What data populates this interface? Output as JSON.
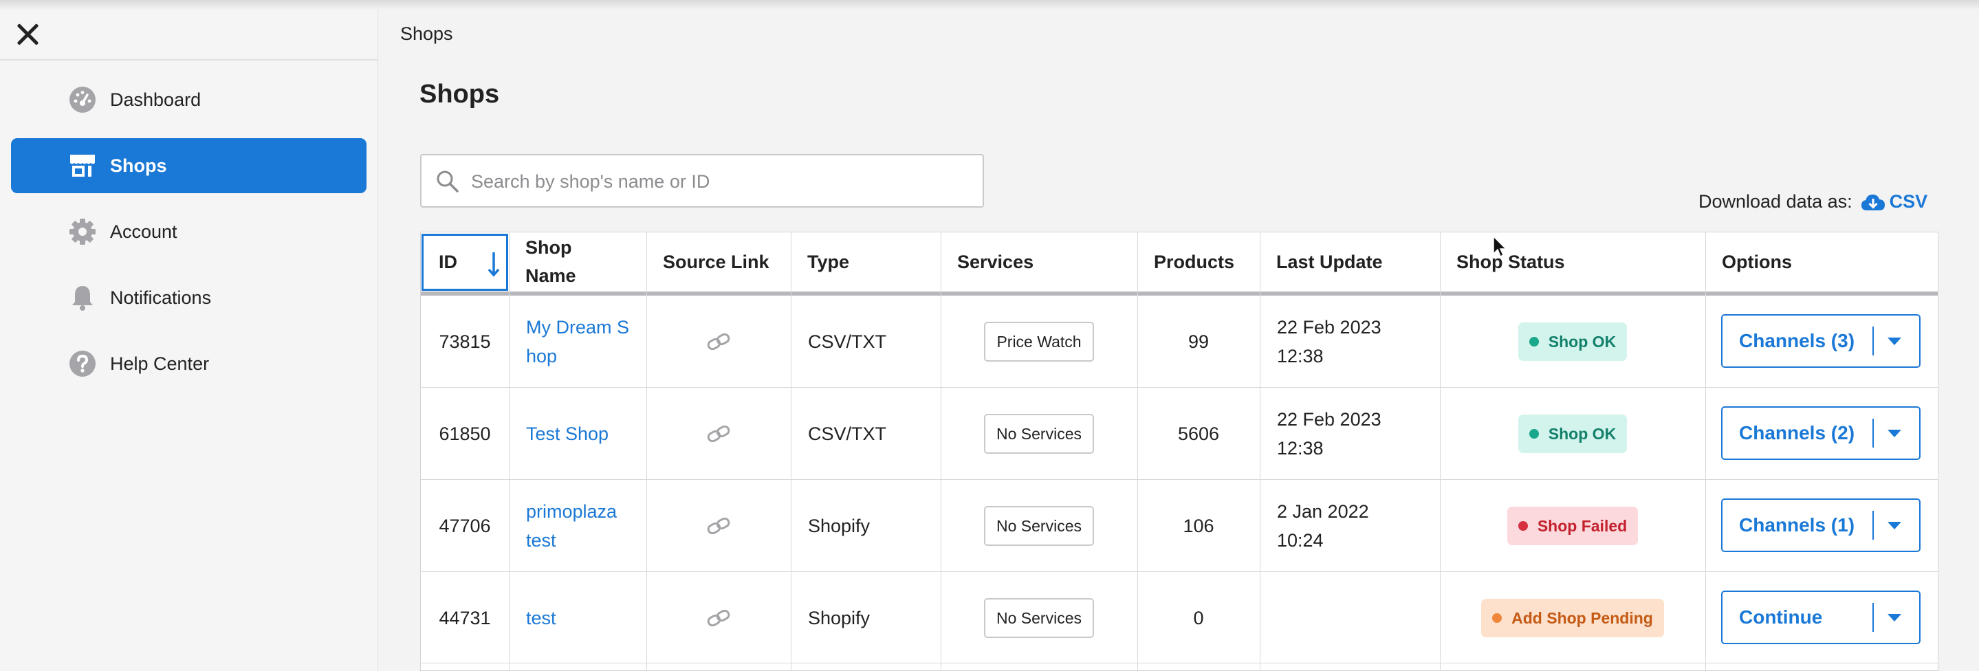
{
  "sidebar": {
    "items": [
      {
        "label": "Dashboard",
        "icon": "speedometer-icon",
        "active": false
      },
      {
        "label": "Shops",
        "icon": "storefront-icon",
        "active": true
      },
      {
        "label": "Account",
        "icon": "gear-icon",
        "active": false
      },
      {
        "label": "Notifications",
        "icon": "bell-icon",
        "active": false
      },
      {
        "label": "Help Center",
        "icon": "question-icon",
        "active": false
      }
    ]
  },
  "breadcrumb": "Shops",
  "page_title": "Shops",
  "search": {
    "placeholder": "Search by shop's name or ID",
    "value": ""
  },
  "download": {
    "label": "Download data as:",
    "csv_label": "CSV"
  },
  "colors": {
    "accent": "#1a78d6",
    "ok": "#1aa88a",
    "failed": "#d62f3e",
    "pending": "#f0873c"
  },
  "table": {
    "columns": [
      "ID",
      "Shop Name",
      "Source Link",
      "Type",
      "Services",
      "Products",
      "Last Update",
      "Shop Status",
      "Options"
    ],
    "rows": [
      {
        "id": "73815",
        "name": "My Dream Shop",
        "name_display": [
          "My Dream S",
          "hop"
        ],
        "type": "CSV/TXT",
        "service": "Price Watch",
        "products": "99",
        "update_date": "22 Feb 2023",
        "update_time": "12:38",
        "status": "Shop OK",
        "status_kind": "ok",
        "option": "Channels (3)"
      },
      {
        "id": "61850",
        "name": "Test Shop",
        "name_display": [
          "Test Shop"
        ],
        "type": "CSV/TXT",
        "service": "No Services",
        "products": "5606",
        "update_date": "22 Feb 2023",
        "update_time": "12:38",
        "status": "Shop OK",
        "status_kind": "ok",
        "option": "Channels (2)"
      },
      {
        "id": "47706",
        "name": "primoplaza test",
        "name_display": [
          "primoplaza",
          "test"
        ],
        "type": "Shopify",
        "service": "No Services",
        "products": "106",
        "update_date": "2 Jan 2022",
        "update_time": "10:24",
        "status": "Shop Failed",
        "status_kind": "failed",
        "option": "Channels (1)"
      },
      {
        "id": "44731",
        "name": "test",
        "name_display": [
          "test"
        ],
        "type": "Shopify",
        "service": "No Services",
        "products": "0",
        "update_date": "",
        "update_time": "",
        "status": "Add Shop Pending",
        "status_kind": "pending",
        "option": "Continue"
      }
    ]
  }
}
